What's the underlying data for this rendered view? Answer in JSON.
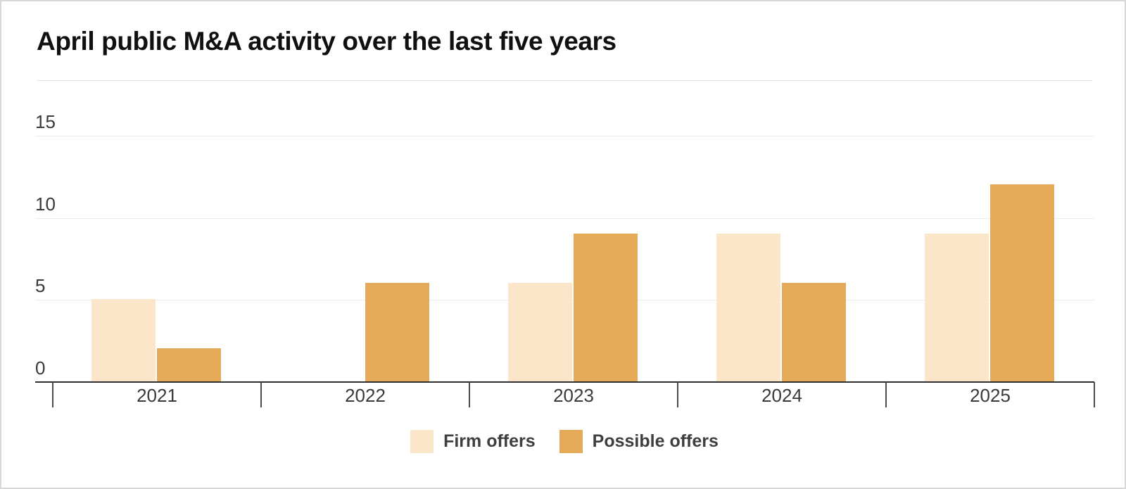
{
  "title": "April public M&A activity over the last five years",
  "chart_data": {
    "type": "bar",
    "title": "April public M&A activity over the last five years",
    "categories": [
      "2021",
      "2022",
      "2023",
      "2024",
      "2025"
    ],
    "series": [
      {
        "name": "Firm offers",
        "color": "#fce6c9",
        "values": [
          5,
          0,
          6,
          9,
          9
        ]
      },
      {
        "name": "Possible offers",
        "color": "#e4aa58",
        "values": [
          2,
          6,
          9,
          6,
          12
        ]
      }
    ],
    "xlabel": "",
    "ylabel": "",
    "ylim": [
      0,
      15
    ],
    "yticks": [
      0,
      5,
      10,
      15
    ],
    "grid": true,
    "legend_position": "bottom"
  },
  "colors": {
    "gridline": "#ececec",
    "axis": "#2f2f2f",
    "tick": "#4a4a4a"
  }
}
